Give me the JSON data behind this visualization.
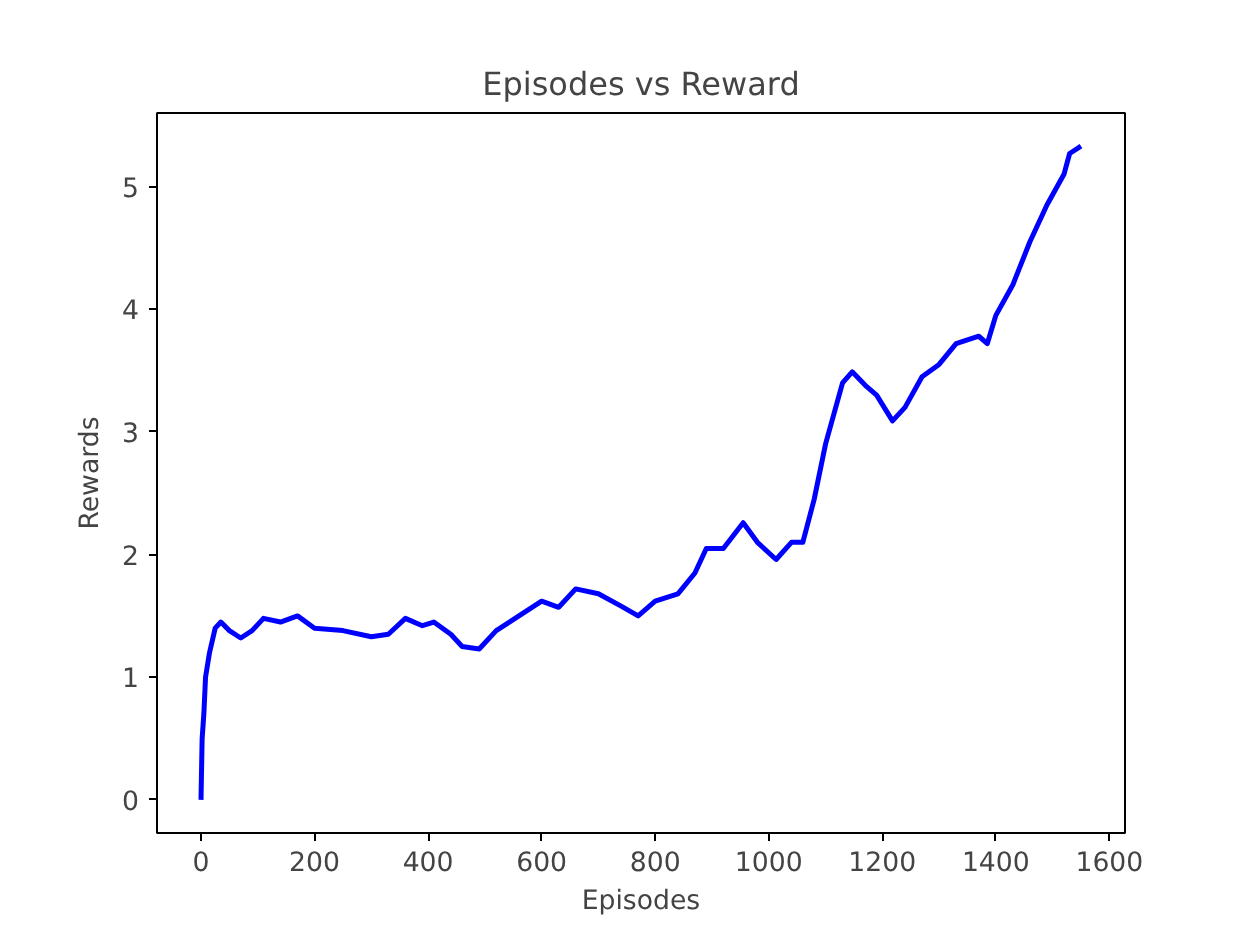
{
  "chart_data": {
    "type": "line",
    "title": "Episodes vs Reward",
    "xlabel": "Episodes",
    "ylabel": "Rewards",
    "x": [
      0,
      2,
      5,
      8,
      15,
      25,
      35,
      50,
      70,
      90,
      110,
      140,
      170,
      200,
      250,
      300,
      330,
      360,
      390,
      410,
      440,
      460,
      490,
      520,
      560,
      600,
      630,
      660,
      700,
      740,
      770,
      800,
      840,
      870,
      890,
      920,
      955,
      980,
      1013,
      1040,
      1060,
      1080,
      1100,
      1130,
      1147,
      1170,
      1190,
      1218,
      1240,
      1270,
      1300,
      1330,
      1370,
      1385,
      1400,
      1430,
      1460,
      1490,
      1520,
      1530,
      1550
    ],
    "series": [
      {
        "color": "#0000ff",
        "values": [
          0,
          0.5,
          0.7,
          1.0,
          1.2,
          1.4,
          1.45,
          1.38,
          1.32,
          1.38,
          1.48,
          1.45,
          1.5,
          1.4,
          1.38,
          1.33,
          1.35,
          1.48,
          1.42,
          1.45,
          1.35,
          1.25,
          1.23,
          1.38,
          1.5,
          1.62,
          1.57,
          1.72,
          1.68,
          1.58,
          1.5,
          1.62,
          1.68,
          1.85,
          2.05,
          2.05,
          2.26,
          2.1,
          1.96,
          2.1,
          2.1,
          2.45,
          2.9,
          3.4,
          3.49,
          3.38,
          3.3,
          3.09,
          3.2,
          3.45,
          3.55,
          3.72,
          3.78,
          3.72,
          3.95,
          4.2,
          4.55,
          4.85,
          5.1,
          5.27,
          5.33
        ]
      }
    ],
    "xlim": [
      -77.5,
      1627.5
    ],
    "ylim": [
      -0.27,
      5.6
    ],
    "xticks": [
      0,
      200,
      400,
      600,
      800,
      1000,
      1200,
      1400,
      1600
    ],
    "yticks": [
      0,
      1,
      2,
      3,
      4,
      5
    ],
    "grid": false,
    "line_style": "solid",
    "marker": "none"
  }
}
